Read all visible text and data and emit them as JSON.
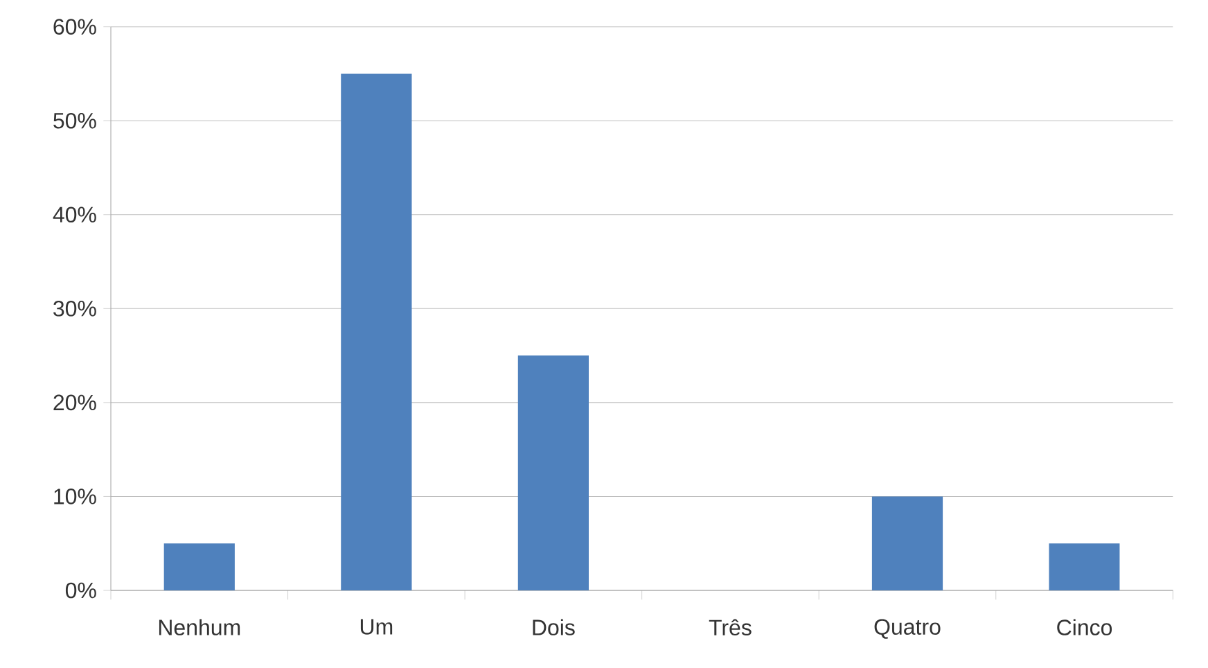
{
  "chart_data": {
    "type": "bar",
    "categories": [
      "Nenhum",
      "Um",
      "Dois",
      "Três",
      "Quatro",
      "Cinco"
    ],
    "values": [
      5,
      55,
      25,
      0,
      10,
      5
    ],
    "color": "#4f81bd",
    "ylim": [
      0,
      60
    ],
    "yticks": [
      {
        "value": 0,
        "label": "0%"
      },
      {
        "value": 10,
        "label": "10%"
      },
      {
        "value": 20,
        "label": "20%"
      },
      {
        "value": 30,
        "label": "30%"
      },
      {
        "value": 40,
        "label": "40%"
      },
      {
        "value": 50,
        "label": "50%"
      },
      {
        "value": 60,
        "label": "60%"
      }
    ],
    "grid": "y"
  }
}
